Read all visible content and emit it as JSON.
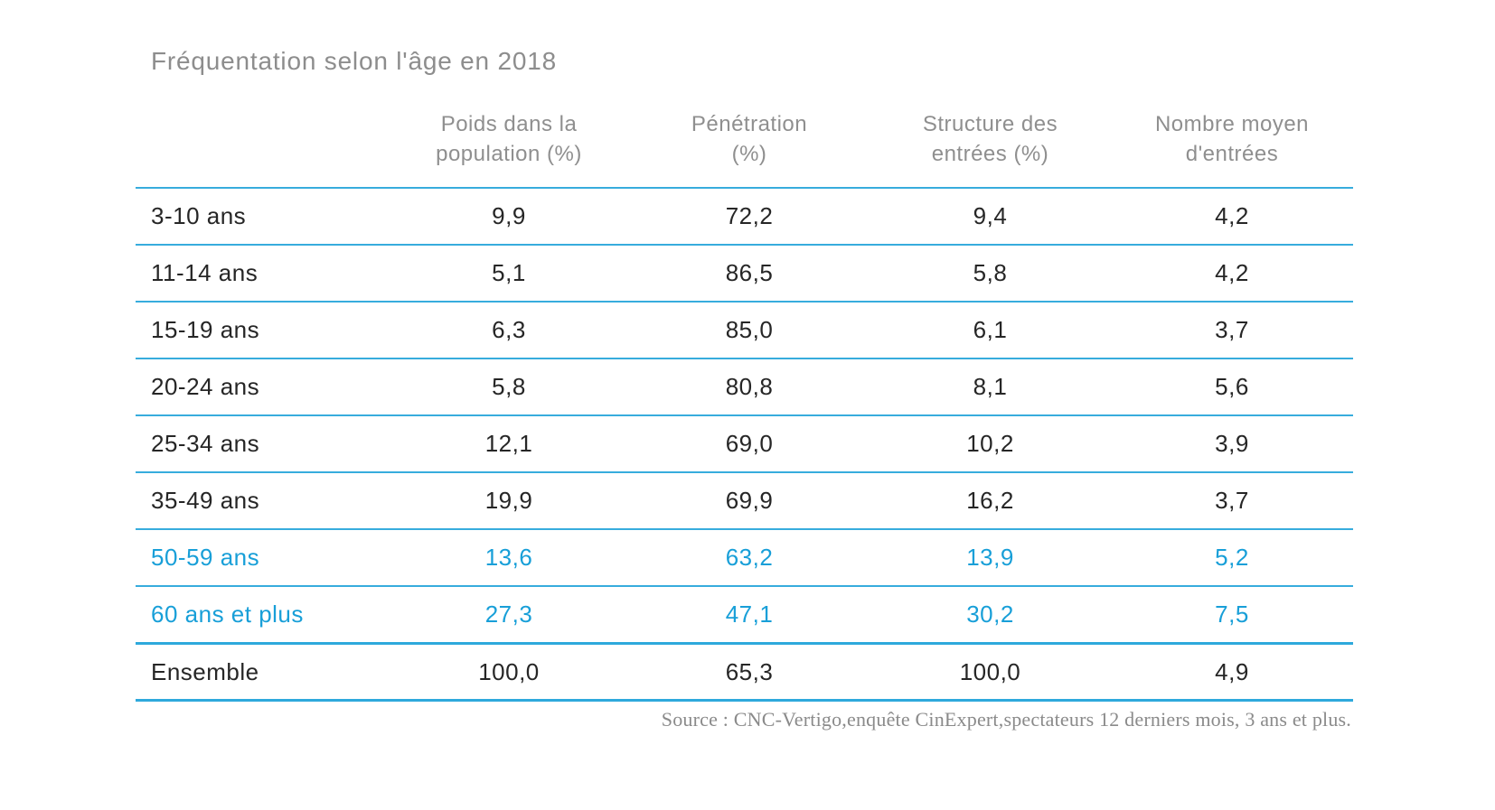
{
  "title": "Fréquentation selon l'âge en 2018",
  "colors": {
    "accent_blue_text": "#189fd8",
    "separator_blue": "#37acdd",
    "heading_gray": "#8d8d8d",
    "data_text": "#262626"
  },
  "chart_data": {
    "type": "table",
    "title": "Fréquentation selon l'âge en 2018",
    "columns": [
      "",
      "Poids dans la\npopulation (%)",
      "Pénétration\n(%)",
      "Structure des\nentrées (%)",
      "Nombre moyen\nd'entrées"
    ],
    "rows": [
      {
        "label": "3-10 ans",
        "values": [
          "9,9",
          "72,2",
          "9,4",
          "4,2"
        ],
        "highlight": false
      },
      {
        "label": "11-14 ans",
        "values": [
          "5,1",
          "86,5",
          "5,8",
          "4,2"
        ],
        "highlight": false
      },
      {
        "label": "15-19 ans",
        "values": [
          "6,3",
          "85,0",
          "6,1",
          "3,7"
        ],
        "highlight": false
      },
      {
        "label": "20-24 ans",
        "values": [
          "5,8",
          "80,8",
          "8,1",
          "5,6"
        ],
        "highlight": false
      },
      {
        "label": "25-34 ans",
        "values": [
          "12,1",
          "69,0",
          "10,2",
          "3,9"
        ],
        "highlight": false
      },
      {
        "label": "35-49 ans",
        "values": [
          "19,9",
          "69,9",
          "16,2",
          "3,7"
        ],
        "highlight": false
      },
      {
        "label": "50-59 ans",
        "values": [
          "13,6",
          "63,2",
          "13,9",
          "5,2"
        ],
        "highlight": true
      },
      {
        "label": "60 ans et plus",
        "values": [
          "27,3",
          "47,1",
          "30,2",
          "7,5"
        ],
        "highlight": true
      },
      {
        "label": "Ensemble",
        "values": [
          "100,0",
          "65,3",
          "100,0",
          "4,9"
        ],
        "highlight": false
      }
    ],
    "source": "Source : CNC-Vertigo,enquête CinExpert,spectateurs 12 derniers mois, 3 ans et plus."
  }
}
